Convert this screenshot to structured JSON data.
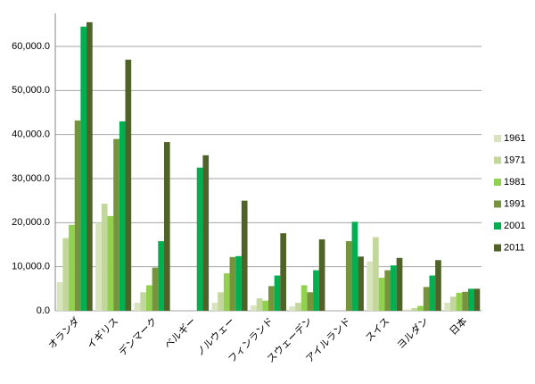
{
  "chart_data": {
    "type": "bar",
    "categories": [
      "オランダ",
      "イギリス",
      "デンマーク",
      "ベルギー",
      "ノルウェー",
      "フィンランド",
      "スウェーデン",
      "アイルランド",
      "スイス",
      "ヨルダン",
      "日本"
    ],
    "series": [
      {
        "name": "1961",
        "color": "#d7e4bd",
        "values": [
          6500,
          20000,
          1800,
          null,
          1800,
          1200,
          1000,
          null,
          11200,
          300,
          1800
        ]
      },
      {
        "name": "1971",
        "color": "#c3d69b",
        "values": [
          16500,
          24300,
          4200,
          null,
          4200,
          2800,
          1800,
          null,
          16700,
          600,
          3200
        ]
      },
      {
        "name": "1981",
        "color": "#92d050",
        "values": [
          19500,
          21500,
          5800,
          null,
          8500,
          2300,
          5800,
          null,
          7500,
          1100,
          4100
        ]
      },
      {
        "name": "1991",
        "color": "#77933c",
        "values": [
          43200,
          39000,
          9800,
          null,
          12200,
          5600,
          4200,
          15800,
          9200,
          5400,
          4300
        ]
      },
      {
        "name": "2001",
        "color": "#00b050",
        "values": [
          64500,
          43000,
          15800,
          32500,
          12400,
          8000,
          9200,
          20200,
          10300,
          8000,
          5000
        ]
      },
      {
        "name": "2011",
        "color": "#4f6228",
        "values": [
          65500,
          57000,
          38300,
          35300,
          25000,
          17600,
          16200,
          12300,
          12000,
          11500,
          5000
        ]
      }
    ],
    "ylim": [
      0,
      67500
    ],
    "yticks": [
      {
        "value": 0,
        "label": "0.0"
      },
      {
        "value": 10000,
        "label": "10,000.0"
      },
      {
        "value": 20000,
        "label": "20,000.0"
      },
      {
        "value": 30000,
        "label": "30,000.0"
      },
      {
        "value": 40000,
        "label": "40,000.0"
      },
      {
        "value": 50000,
        "label": "50,000.0"
      },
      {
        "value": 60000,
        "label": "60,000.0"
      }
    ],
    "grid": true,
    "legend": "right"
  }
}
